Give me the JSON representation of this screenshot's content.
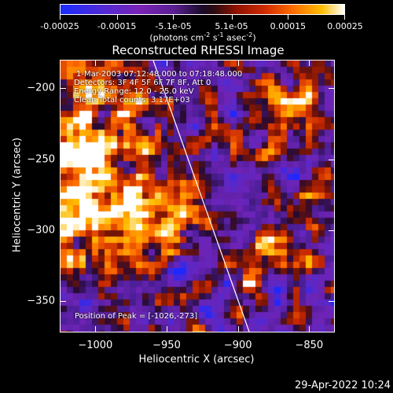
{
  "colorbar": {
    "tick_labels": [
      "-0.00025",
      "-0.00015",
      "-5.1e-05",
      "5.1e-05",
      "0.00015",
      "0.00025"
    ],
    "tick_values": [
      -0.00025,
      -0.00015,
      -5.1e-05,
      5.1e-05,
      0.00015,
      0.00025
    ],
    "range": [
      -0.00025,
      0.00025
    ],
    "units_prefix": "(photons cm",
    "units_sup1": "-2",
    "units_mid": " s",
    "units_sup2": "-1",
    "units_mid2": " asec",
    "units_sup3": "-2",
    "units_suffix": ")"
  },
  "title": "Reconstructed RHESSI Image",
  "annotations": {
    "time": "1-Mar-2003 07:12:48.000 to 07:18:48.000",
    "detectors": "Detectors: 3F 4F 5F 6F 7F 8F, Att 0",
    "energy": "Energy Range: 12.0 - 25.0 keV",
    "clean": "Clean     Total counts: 3.17E+03",
    "peak": "Position of Peak = [-1026,-273]"
  },
  "axes": {
    "xlabel": "Heliocentric X (arcsec)",
    "ylabel": "Heliocentric Y (arcsec)",
    "xrange": [
      -1025,
      -832
    ],
    "yrange": [
      -372,
      -180
    ],
    "xticks": [
      {
        "label": "−1000",
        "value": -1000
      },
      {
        "label": "−950",
        "value": -950
      },
      {
        "label": "−900",
        "value": -900
      },
      {
        "label": "−850",
        "value": -850
      }
    ],
    "yticks": [
      {
        "label": "−200",
        "value": -200
      },
      {
        "label": "−250",
        "value": -250
      },
      {
        "label": "−300",
        "value": -300
      },
      {
        "label": "−350",
        "value": -350
      }
    ]
  },
  "limb_line_color": "#ffffff",
  "timestamp": "29-Apr-2022 10:24"
}
